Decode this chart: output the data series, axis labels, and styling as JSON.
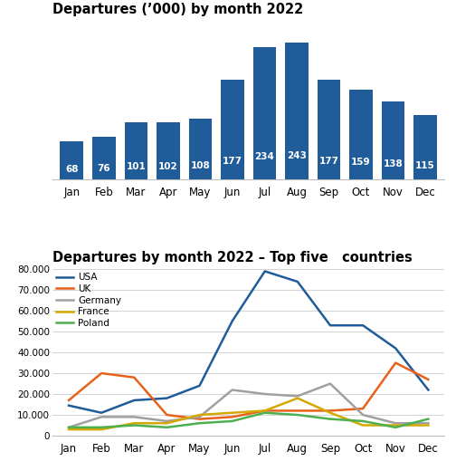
{
  "months": [
    "Jan",
    "Feb",
    "Mar",
    "Apr",
    "May",
    "Jun",
    "Jul",
    "Aug",
    "Sep",
    "Oct",
    "Nov",
    "Dec"
  ],
  "bar_values": [
    68,
    76,
    101,
    102,
    108,
    177,
    234,
    243,
    177,
    159,
    138,
    115
  ],
  "bar_color": "#1F5C99",
  "bar_label_color": "white",
  "title1": "Departures (ʼ000) by month 2022",
  "title2": "Departures by month 2022 – Top five   countries",
  "line_data": {
    "USA": [
      14500,
      11000,
      17000,
      18000,
      24000,
      55000,
      79000,
      74000,
      53000,
      53000,
      42000,
      22000
    ],
    "UK": [
      17000,
      30000,
      28000,
      10000,
      8000,
      9000,
      12000,
      12000,
      12000,
      13000,
      35000,
      27000
    ],
    "Germany": [
      4000,
      9000,
      9000,
      7000,
      9000,
      22000,
      20000,
      19000,
      25000,
      10000,
      6000,
      6000
    ],
    "France": [
      3000,
      3000,
      6000,
      6000,
      10000,
      11000,
      12000,
      18000,
      11000,
      5000,
      5000,
      5000
    ],
    "Poland": [
      4000,
      4000,
      5000,
      4000,
      6000,
      7000,
      11000,
      10000,
      8000,
      7000,
      4000,
      8000
    ]
  },
  "line_colors": {
    "USA": "#1F5C99",
    "UK": "#E8611A",
    "Germany": "#A0A0A0",
    "France": "#D4A800",
    "Poland": "#4CAF50"
  },
  "ylim2": [
    0,
    80000
  ],
  "yticks2": [
    0,
    10000,
    20000,
    30000,
    40000,
    50000,
    60000,
    70000,
    80000
  ],
  "background_color": "#ffffff"
}
